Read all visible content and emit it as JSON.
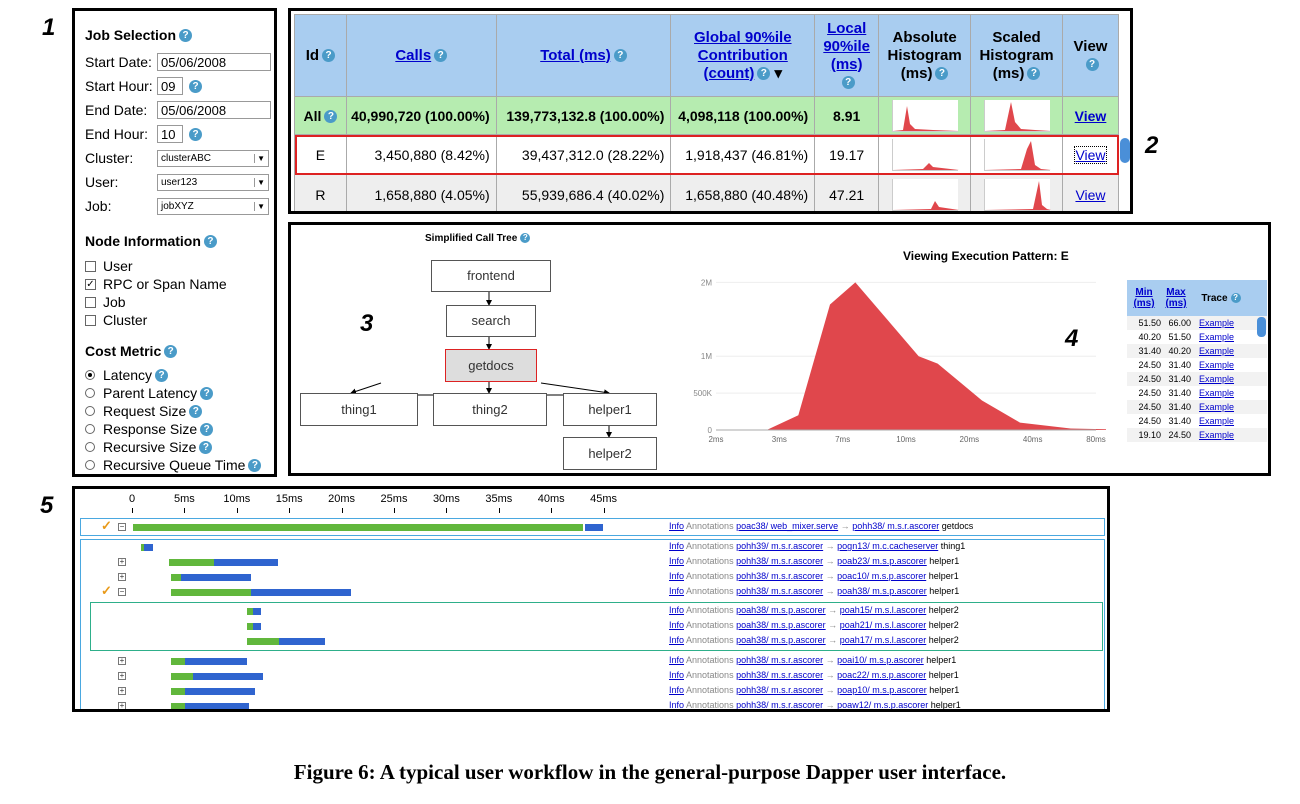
{
  "panel_labels": [
    "1",
    "2",
    "3",
    "4",
    "5"
  ],
  "job_selection": {
    "title": "Job Selection",
    "start_date": {
      "label": "Start Date:",
      "value": "05/06/2008"
    },
    "start_hour": {
      "label": "Start Hour:",
      "value": "09"
    },
    "end_date": {
      "label": "End Date:",
      "value": "05/06/2008"
    },
    "end_hour": {
      "label": "End Hour:",
      "value": "10"
    },
    "cluster": {
      "label": "Cluster:",
      "value": "clusterABC"
    },
    "user": {
      "label": "User:",
      "value": "user123"
    },
    "job": {
      "label": "Job:",
      "value": "jobXYZ"
    },
    "node_info_title": "Node Information",
    "node_info": [
      {
        "label": "User",
        "checked": false
      },
      {
        "label": "RPC or Span Name",
        "checked": true
      },
      {
        "label": "Job",
        "checked": false
      },
      {
        "label": "Cluster",
        "checked": false
      }
    ],
    "cost_metric_title": "Cost Metric",
    "cost_metric": [
      {
        "label": "Latency",
        "selected": true
      },
      {
        "label": "Parent Latency",
        "selected": false
      },
      {
        "label": "Request Size",
        "selected": false
      },
      {
        "label": "Response Size",
        "selected": false
      },
      {
        "label": "Recursive Size",
        "selected": false
      },
      {
        "label": "Recursive Queue Time",
        "selected": false
      }
    ]
  },
  "summary_table": {
    "headers": {
      "id": "Id",
      "calls": "Calls",
      "total": "Total (ms)",
      "global": "Global 90%ile Contribution (count)",
      "local": "Local 90%ile (ms)",
      "abs": "Absolute Histogram (ms)",
      "scaled": "Scaled Histogram (ms)",
      "view": "View"
    },
    "rows": [
      {
        "id": "All",
        "calls": "40,990,720 (100.00%)",
        "total": "139,773,132.8 (100.00%)",
        "global": "4,098,118 (100.00%)",
        "local": "8.91",
        "view": "View"
      },
      {
        "id": "E",
        "calls": "3,450,880 (8.42%)",
        "total": "39,437,312.0 (28.22%)",
        "global": "1,918,437 (46.81%)",
        "local": "19.17",
        "view": "View"
      },
      {
        "id": "R",
        "calls": "1,658,880 (4.05%)",
        "total": "55,939,686.4 (40.02%)",
        "global": "1,658,880 (40.48%)",
        "local": "47.21",
        "view": "View"
      }
    ]
  },
  "call_tree": {
    "title": "Simplified Call Tree",
    "nodes": [
      "frontend",
      "search",
      "getdocs",
      "thing1",
      "thing2",
      "helper1",
      "helper2"
    ]
  },
  "chart_data": {
    "type": "area",
    "title": "Viewing Execution Pattern: E",
    "x": [
      "2ms",
      "3ms",
      "7ms",
      "10ms",
      "20ms",
      "40ms",
      "80ms"
    ],
    "y_ticks": [
      "2M",
      "1M",
      "500K",
      "0"
    ],
    "points": [
      [
        0,
        0
      ],
      [
        0.8,
        0
      ],
      [
        1.3,
        200000
      ],
      [
        1.8,
        1700000
      ],
      [
        2.2,
        2000000
      ],
      [
        3.2,
        1000000
      ],
      [
        3.5,
        900000
      ],
      [
        4.2,
        400000
      ],
      [
        4.8,
        100000
      ],
      [
        5.6,
        20000
      ],
      [
        6.4,
        5000
      ]
    ],
    "color": "#e0474c",
    "ylim": [
      0,
      2100000
    ]
  },
  "exemplar_table": {
    "headers": {
      "min": "Min (ms)",
      "max": "Max (ms)",
      "trace": "Trace"
    },
    "rows": [
      [
        "51.50",
        "66.00",
        "Example"
      ],
      [
        "40.20",
        "51.50",
        "Example"
      ],
      [
        "31.40",
        "40.20",
        "Example"
      ],
      [
        "24.50",
        "31.40",
        "Example"
      ],
      [
        "24.50",
        "31.40",
        "Example"
      ],
      [
        "24.50",
        "31.40",
        "Example"
      ],
      [
        "24.50",
        "31.40",
        "Example"
      ],
      [
        "24.50",
        "31.40",
        "Example"
      ],
      [
        "19.10",
        "24.50",
        "Example"
      ]
    ]
  },
  "trace": {
    "ticks": [
      "0",
      "5ms",
      "10ms",
      "15ms",
      "20ms",
      "25ms",
      "30ms",
      "35ms",
      "40ms",
      "45ms"
    ],
    "info": "Info",
    "annotations": "Annotations",
    "rows": [
      {
        "from": "poac38/ web_mixer.serve",
        "to": "pohh38/ m.s.r.ascorer",
        "name": "getdocs"
      },
      {
        "from": "pohh39/ m.s.r.ascorer",
        "to": "pogn13/ m.c.cacheserver",
        "name": "thing1"
      },
      {
        "from": "pohh38/ m.s.r.ascorer",
        "to": "poab23/ m.s.p.ascorer",
        "name": "helper1"
      },
      {
        "from": "pohh38/ m.s.r.ascorer",
        "to": "poac10/ m.s.p.ascorer",
        "name": "helper1"
      },
      {
        "from": "pohh38/ m.s.r.ascorer",
        "to": "poah38/ m.s.p.ascorer",
        "name": "helper1"
      },
      {
        "from": "poah38/ m.s.p.ascorer",
        "to": "poah15/ m.s.l.ascorer",
        "name": "helper2"
      },
      {
        "from": "poah38/ m.s.p.ascorer",
        "to": "poah21/ m.s.l.ascorer",
        "name": "helper2"
      },
      {
        "from": "poah38/ m.s.p.ascorer",
        "to": "poah17/ m.s.l.ascorer",
        "name": "helper2"
      },
      {
        "from": "pohh38/ m.s.r.ascorer",
        "to": "poai10/ m.s.p.ascorer",
        "name": "helper1"
      },
      {
        "from": "pohh38/ m.s.r.ascorer",
        "to": "poac22/ m.s.p.ascorer",
        "name": "helper1"
      },
      {
        "from": "pohh38/ m.s.r.ascorer",
        "to": "poap10/ m.s.p.ascorer",
        "name": "helper1"
      },
      {
        "from": "pohh38/ m.s.r.ascorer",
        "to": "poaw12/ m.s.p.ascorer",
        "name": "helper1"
      }
    ]
  },
  "caption": "Figure 6: A typical user workflow in the general-purpose Dapper user interface."
}
